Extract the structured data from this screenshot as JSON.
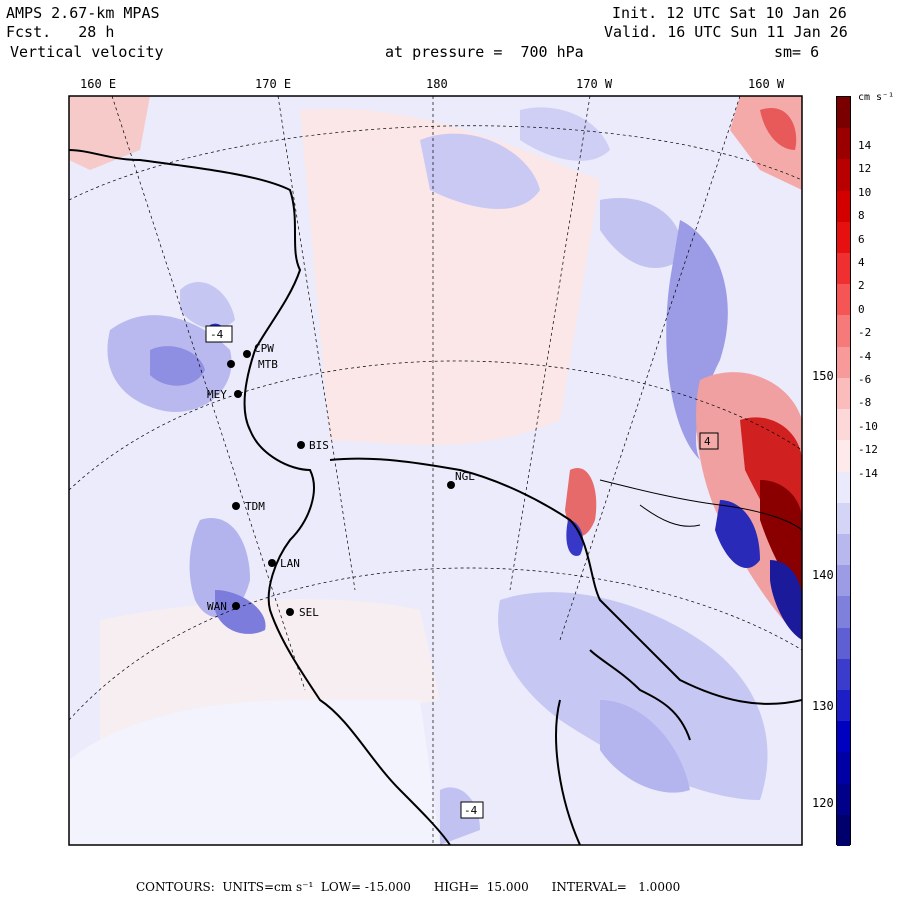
{
  "header": {
    "model": "AMPS 2.67-km MPAS",
    "init": "Init. 12 UTC Sat 10 Jan 26",
    "fcst": "Fcst.   28 h",
    "valid": "Valid. 16 UTC Sun 11 Jan 26",
    "field": "Vertical velocity",
    "level": "at pressure =  700 hPa",
    "smooth": "sm= 6"
  },
  "lon_labels": [
    "160 E",
    "170 E",
    "180",
    "170 W",
    "160 W"
  ],
  "lat_labels": [
    "150 W",
    "140 W",
    "130 W",
    "120 W"
  ],
  "stations": [
    {
      "id": "CPW"
    },
    {
      "id": "MTB"
    },
    {
      "id": "MEY"
    },
    {
      "id": "BIS"
    },
    {
      "id": "NGL"
    },
    {
      "id": "TDM"
    },
    {
      "id": "LAN"
    },
    {
      "id": "WAN"
    },
    {
      "id": "SEL"
    }
  ],
  "extrema": [
    {
      "kind": "low",
      "value": "-4"
    },
    {
      "kind": "high",
      "value": "4"
    },
    {
      "kind": "low",
      "value": "-4"
    }
  ],
  "colorbar": {
    "units": "cm s⁻¹",
    "labels": [
      "14",
      "12",
      "10",
      "8",
      "6",
      "4",
      "2",
      "0",
      "-2",
      "-4",
      "-6",
      "-8",
      "-10",
      "-12",
      "-14"
    ],
    "colors": [
      "#7a0000",
      "#9a0000",
      "#b80000",
      "#d40000",
      "#e61010",
      "#f03030",
      "#f55555",
      "#f77a7a",
      "#f99a9a",
      "#fbbcbc",
      "#fdd8d8",
      "#feeaea",
      "#eaeafc",
      "#d4d4f6",
      "#b8b8ef",
      "#9c9ce6",
      "#7f7fdc",
      "#5f5fd4",
      "#3c3ccc",
      "#1e1ec6",
      "#0000c0",
      "#0000a4",
      "#000088",
      "#00006c"
    ]
  },
  "footer": {
    "text": "CONTOURS:  UNITS=cm s⁻¹  LOW= -15.000      HIGH=  15.000      INTERVAL=   1.0000"
  }
}
